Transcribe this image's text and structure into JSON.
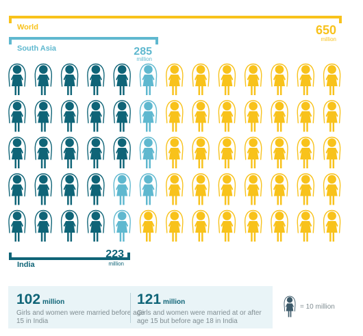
{
  "chart_data": {
    "type": "pictograph",
    "unit_value": 10,
    "unit_label": "million",
    "grid": {
      "rows": 5,
      "columns": 13
    },
    "series": [
      {
        "name": "India",
        "value": 223,
        "color": "#0f6477"
      },
      {
        "name": "South Asia",
        "value": 285,
        "color": "#5fb8cf"
      },
      {
        "name": "World",
        "value": 650,
        "color": "#f8c21b"
      }
    ],
    "brackets": [
      {
        "label": "World",
        "value_label": "650",
        "unit": "million",
        "color": "#f8c21b"
      },
      {
        "label": "South Asia",
        "value_label": "285",
        "unit": "million",
        "color": "#5fb8cf"
      },
      {
        "label": "India",
        "value_label": "223",
        "unit": "million",
        "color": "#0f6477"
      }
    ]
  },
  "stats": [
    {
      "value": "102",
      "unit": "million",
      "description": "Girls and women were married before age 15 in India"
    },
    {
      "value": "121",
      "unit": "million",
      "description": "Girls and women were married at or after age 15 but before age 18 in India"
    }
  ],
  "legend": {
    "text": "= 10 million",
    "icon": "girl-icon"
  }
}
